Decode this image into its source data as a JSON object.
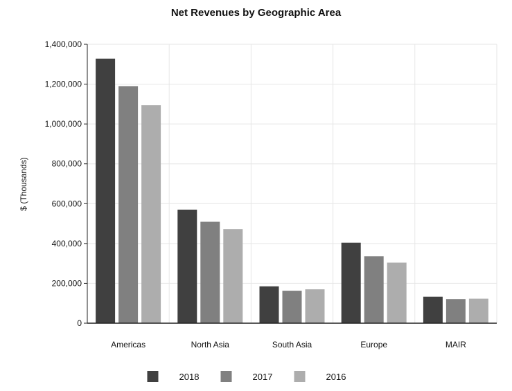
{
  "chart_data": {
    "type": "bar",
    "title": "Net Revenues by Geographic Area",
    "xlabel": "",
    "ylabel": "$ (Thousands)",
    "categories": [
      "Americas",
      "North Asia",
      "South Asia",
      "Europe",
      "MAIR"
    ],
    "series": [
      {
        "name": "2018",
        "color": "#404040",
        "values": [
          1328000,
          570000,
          185000,
          404000,
          133000
        ]
      },
      {
        "name": "2017",
        "color": "#808080",
        "values": [
          1190000,
          509000,
          163000,
          336000,
          121000
        ]
      },
      {
        "name": "2016",
        "color": "#adadad",
        "values": [
          1094000,
          472000,
          170000,
          304000,
          123000
        ]
      }
    ],
    "ylim": [
      0,
      1400000
    ],
    "yticks": [
      0,
      200000,
      400000,
      600000,
      800000,
      1000000,
      1200000,
      1400000
    ],
    "ytick_labels": [
      "0",
      "200,000",
      "400,000",
      "600,000",
      "800,000",
      "1,000,000",
      "1,200,000",
      "1,400,000"
    ],
    "grid": true,
    "legend": "bottom-center"
  }
}
